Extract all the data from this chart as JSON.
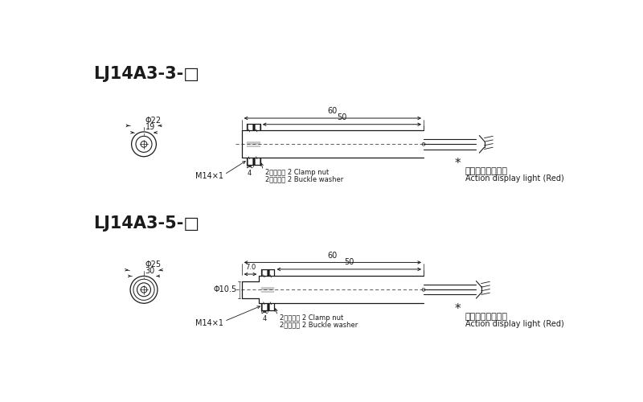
{
  "bg_color": "#ffffff",
  "line_color": "#1a1a1a",
  "title1": "LJ14A3-3-□",
  "title2": "LJ14A3-5-□",
  "s1": {
    "phi_outer": "Φ22",
    "phi_inner": "19",
    "len60": "60",
    "len50": "50",
    "thread": "M14×1",
    "nut_w": "4",
    "notes1": "2紧固螺母 2 Clamp nut",
    "notes2": "2齿扣垃圈 2 Buckle washer",
    "light_cn": "动作显示灯（红）",
    "light_en": "Action display light (Red)"
  },
  "s2": {
    "phi_outer": "Φ25",
    "phi_inner": "30",
    "len60": "60",
    "len50": "50",
    "front": "7.0",
    "phi_hole": "Φ10.5",
    "thread": "M14×1",
    "nut_w": "4",
    "notes1": "2紧固螺母 2 Clamp nut",
    "notes2": "2齿扣垃圈 2 Buckle washer",
    "light_cn": "动作显示灯（红）",
    "light_en": "Action display light (Red)"
  }
}
